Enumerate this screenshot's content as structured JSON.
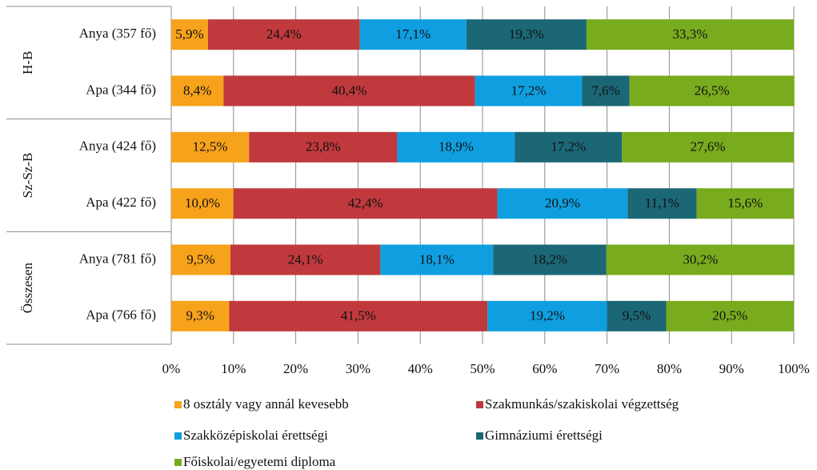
{
  "chart_data": {
    "type": "stacked-bar-horizontal",
    "groups": [
      "H-B",
      "Sz-Sz-B",
      "Összesen"
    ],
    "categories": [
      "Anya (357 fő)",
      "Apa (344 fő)",
      "Anya (424 fő)",
      "Apa (422 fő)",
      "Anya (781 fő)",
      "Apa (766 fő)"
    ],
    "series": [
      {
        "name": "8 osztály vagy annál kevesebb",
        "color": "#f7a21b",
        "values": [
          5.9,
          8.4,
          12.5,
          10.0,
          9.5,
          9.3
        ],
        "value_labels": [
          "5,9%",
          "8,4%",
          "12,5%",
          "10,0%",
          "9,5%",
          "9,3%"
        ]
      },
      {
        "name": "Szakmunkás/szakiskolai végzettség",
        "color": "#c0393d",
        "values": [
          24.4,
          40.4,
          23.8,
          42.4,
          24.1,
          41.5
        ],
        "value_labels": [
          "24,4%",
          "40,4%",
          "23,8%",
          "42,4%",
          "24,1%",
          "41,5%"
        ]
      },
      {
        "name": "Szakközépiskolai érettségi",
        "color": "#0f9fe0",
        "values": [
          17.1,
          17.2,
          18.9,
          20.9,
          18.1,
          19.2
        ],
        "value_labels": [
          "17,1%",
          "17,2%",
          "18,9%",
          "20,9%",
          "18,1%",
          "19,2%"
        ]
      },
      {
        "name": "Gimnáziumi érettségi",
        "color": "#1b6776",
        "values": [
          19.3,
          7.6,
          17.2,
          11.1,
          18.2,
          9.5
        ],
        "value_labels": [
          "19,3%",
          "7,6%",
          "17,2%",
          "11,1%",
          "18,2%",
          "9,5%"
        ]
      },
      {
        "name": "Főiskolai/egyetemi diploma",
        "color": "#78ab1e",
        "values": [
          33.3,
          26.5,
          27.6,
          15.6,
          30.2,
          20.5
        ],
        "value_labels": [
          "33,3%",
          "26,5%",
          "27,6%",
          "15,6%",
          "30,2%",
          "20,5%"
        ]
      }
    ],
    "xlim": [
      0,
      100
    ],
    "xticks": [
      {
        "value": 0,
        "label": "0%"
      },
      {
        "value": 10,
        "label": "10%"
      },
      {
        "value": 20,
        "label": "20%"
      },
      {
        "value": 30,
        "label": "30%"
      },
      {
        "value": 40,
        "label": "40%"
      },
      {
        "value": 50,
        "label": "50%"
      },
      {
        "value": 60,
        "label": "60%"
      },
      {
        "value": 70,
        "label": "70%"
      },
      {
        "value": 80,
        "label": "80%"
      },
      {
        "value": 90,
        "label": "90%"
      },
      {
        "value": 100,
        "label": "100%"
      }
    ],
    "grid": true
  }
}
